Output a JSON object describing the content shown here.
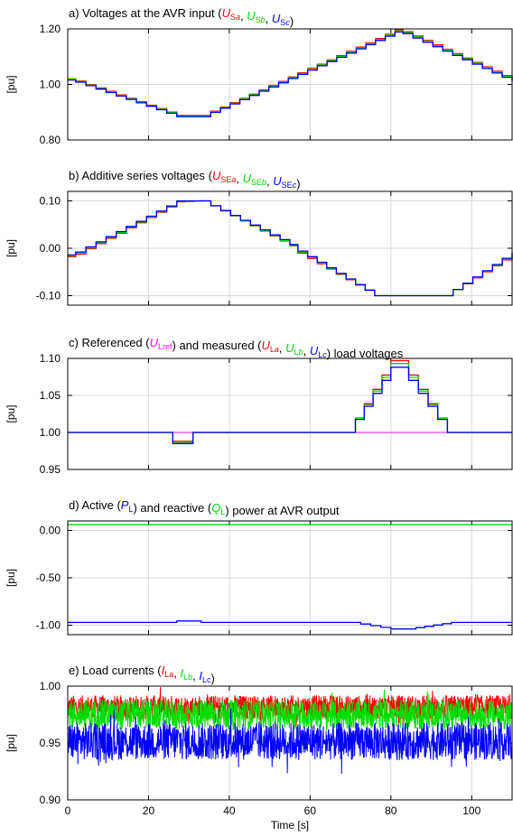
{
  "colors": {
    "a": "#ff0000",
    "b": "#00dd00",
    "c": "#0000ff",
    "ref": "#ff00ff",
    "grid": "#d9d9d9"
  },
  "x_axis": {
    "label": "Time [s]",
    "ticks": [
      0,
      20,
      40,
      60,
      80,
      100
    ],
    "xlim": [
      0,
      110
    ]
  },
  "chart_data": [
    {
      "type": "line",
      "title_segments": [
        {
          "t": "a) Voltages at the AVR input ("
        },
        {
          "t": "U",
          "sub": "S",
          "sub2": "a",
          "c": "a"
        },
        {
          "t": ", "
        },
        {
          "t": "U",
          "sub": "S",
          "sub2": "b",
          "c": "b"
        },
        {
          "t": ", "
        },
        {
          "t": "U",
          "sub": "S",
          "sub2": "c",
          "c": "c"
        },
        {
          "t": ")"
        }
      ],
      "ylabel": "[pu]",
      "ylim": [
        0.8,
        1.2
      ],
      "yticks": [
        "0.80",
        "1.00",
        "1.20"
      ],
      "grid": true,
      "series": [
        {
          "color": "a",
          "x": [
            0,
            2,
            27,
            33,
            81,
            83,
            110
          ],
          "values": [
            1.02,
            1.012,
            0.888,
            0.888,
            1.196,
            1.19,
            1.016
          ]
        },
        {
          "color": "b",
          "x": [
            0,
            2,
            27,
            33,
            81,
            83,
            110
          ],
          "values": [
            1.02,
            1.01,
            0.886,
            0.886,
            1.193,
            1.187,
            1.014
          ]
        },
        {
          "color": "c",
          "x": [
            0,
            2,
            27,
            33,
            81,
            83,
            110
          ],
          "values": [
            1.016,
            1.008,
            0.884,
            0.884,
            1.189,
            1.183,
            1.01
          ]
        }
      ]
    },
    {
      "type": "line",
      "title_segments": [
        {
          "t": "b) Additive series voltages ("
        },
        {
          "t": "U",
          "sub": "SE",
          "sub2": "a",
          "c": "a"
        },
        {
          "t": ", "
        },
        {
          "t": "U",
          "sub": "SE",
          "sub2": "b",
          "c": "b"
        },
        {
          "t": ", "
        },
        {
          "t": "U",
          "sub": "SE",
          "sub2": "c",
          "c": "c"
        },
        {
          "t": ")"
        }
      ],
      "ylabel": "[pu]",
      "ylim": [
        -0.12,
        0.12
      ],
      "yticks": [
        "-0.10",
        "0.00",
        "0.10"
      ],
      "grid": true,
      "series": [
        {
          "color": "a",
          "x": [
            0,
            2,
            27,
            33,
            55,
            57,
            76,
            93,
            110
          ],
          "values": [
            -0.018,
            -0.012,
            0.098,
            0.1,
            0.005,
            -0.01,
            -0.1,
            -0.1,
            -0.012
          ]
        },
        {
          "color": "b",
          "x": [
            0,
            2,
            27,
            33,
            55,
            57,
            76,
            93,
            110
          ],
          "values": [
            -0.016,
            -0.01,
            0.099,
            0.1,
            0.006,
            -0.008,
            -0.1,
            -0.1,
            -0.01
          ]
        },
        {
          "color": "c",
          "x": [
            0,
            2,
            27,
            33,
            55,
            57,
            76,
            93,
            110
          ],
          "values": [
            -0.014,
            -0.008,
            0.1,
            0.1,
            0.008,
            -0.006,
            -0.1,
            -0.1,
            -0.008
          ]
        }
      ]
    },
    {
      "type": "line",
      "title_segments": [
        {
          "t": "c) Referenced ("
        },
        {
          "t": "U",
          "sub": "Lref",
          "c": "ref"
        },
        {
          "t": ") and measured ("
        },
        {
          "t": "U",
          "sub": "L",
          "sub2": "a",
          "c": "a"
        },
        {
          "t": ", "
        },
        {
          "t": "U",
          "sub": "L",
          "sub2": "b",
          "c": "b"
        },
        {
          "t": ", "
        },
        {
          "t": "U",
          "sub": "L",
          "sub2": "c",
          "c": "c"
        },
        {
          "t": ") load voltages"
        }
      ],
      "ylabel": "[pu]",
      "ylim": [
        0.95,
        1.1
      ],
      "yticks": [
        "0.95",
        "1.00",
        "1.05",
        "1.10"
      ],
      "grid": true,
      "series": [
        {
          "color": "ref",
          "x": [
            0,
            110
          ],
          "values": [
            1.0,
            1.0
          ]
        },
        {
          "color": "a",
          "x": [
            0,
            25,
            26,
            30,
            31,
            69,
            80,
            82,
            94,
            95,
            110
          ],
          "values": [
            1.0,
            1.0,
            0.988,
            0.988,
            1.0,
            1.0,
            1.097,
            1.097,
            1.0,
            1.0,
            1.0
          ]
        },
        {
          "color": "b",
          "x": [
            0,
            25,
            26,
            30,
            31,
            69,
            80,
            82,
            94,
            95,
            110
          ],
          "values": [
            1.0,
            1.0,
            0.986,
            0.986,
            1.0,
            1.0,
            1.093,
            1.093,
            1.0,
            1.0,
            1.0
          ]
        },
        {
          "color": "c",
          "x": [
            0,
            25,
            26,
            30,
            31,
            69,
            80,
            82,
            94,
            95,
            110
          ],
          "values": [
            1.0,
            1.0,
            0.985,
            0.985,
            1.0,
            1.0,
            1.088,
            1.088,
            1.0,
            1.0,
            1.0
          ]
        }
      ]
    },
    {
      "type": "line",
      "title_segments": [
        {
          "t": "d) Active ("
        },
        {
          "t": "P",
          "sub": "L",
          "c": "c"
        },
        {
          "t": ") and reactive ("
        },
        {
          "t": "Q",
          "sub": "L",
          "c": "b"
        },
        {
          "t": ") power at AVR output"
        }
      ],
      "ylabel": "[pu]",
      "ylim": [
        -1.1,
        0.1
      ],
      "yticks": [
        "-1.00",
        "-0.50",
        "0.00"
      ],
      "grid": true,
      "series": [
        {
          "color": "b",
          "x": [
            0,
            110
          ],
          "values": [
            0.06,
            0.06
          ]
        },
        {
          "color": "c",
          "x": [
            0,
            25,
            27,
            31,
            33,
            70,
            80,
            84,
            95,
            110
          ],
          "values": [
            -0.97,
            -0.97,
            -0.955,
            -0.955,
            -0.97,
            -0.97,
            -1.04,
            -1.04,
            -0.97,
            -0.97
          ]
        }
      ]
    },
    {
      "type": "line",
      "title_segments": [
        {
          "t": "e) Load currents ("
        },
        {
          "t": "I",
          "sub": "La",
          "c": "a"
        },
        {
          "t": ", "
        },
        {
          "t": "I",
          "sub": "Lb",
          "c": "b"
        },
        {
          "t": ", "
        },
        {
          "t": "I",
          "sub": "Lc",
          "c": "c"
        },
        {
          "t": ")"
        }
      ],
      "ylabel": "[pu]",
      "ylim": [
        0.9,
        1.0
      ],
      "yticks": [
        "0.90",
        "0.95",
        "1.00"
      ],
      "grid": true,
      "series": [
        {
          "color": "a",
          "x": [
            0,
            110
          ],
          "values": [
            0.981,
            0.981
          ],
          "noise_band": [
            0.971,
            0.992
          ]
        },
        {
          "color": "b",
          "x": [
            0,
            110
          ],
          "values": [
            0.975,
            0.975
          ],
          "noise_band": [
            0.962,
            0.988
          ]
        },
        {
          "color": "c",
          "x": [
            0,
            110
          ],
          "values": [
            0.952,
            0.952
          ],
          "noise_band": [
            0.935,
            0.968
          ]
        }
      ]
    }
  ]
}
